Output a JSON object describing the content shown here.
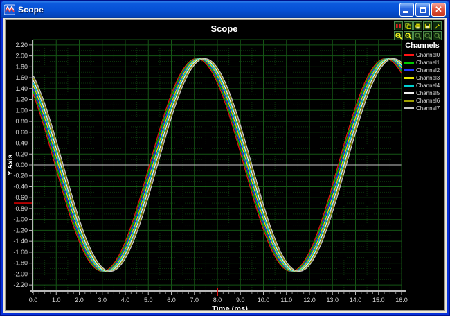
{
  "window": {
    "title": "Scope",
    "controls": {
      "minimize": "minimize",
      "maximize": "maximize",
      "close": "✕"
    }
  },
  "toolbar": {
    "buttons": [
      "pause",
      "copy",
      "print",
      "save",
      "settings",
      "zoom-in",
      "zoom-out",
      "zoom-x",
      "zoom-y",
      "zoom-box"
    ]
  },
  "legend": {
    "title": "Channels",
    "channels": [
      {
        "label": "Channel0",
        "color": "#ff1414"
      },
      {
        "label": "Channel1",
        "color": "#00c800"
      },
      {
        "label": "Channel2",
        "color": "#2238ff"
      },
      {
        "label": "Channel3",
        "color": "#e6e600"
      },
      {
        "label": "Channel4",
        "color": "#00d2d2"
      },
      {
        "label": "Channel5",
        "color": "#f0f0f0"
      },
      {
        "label": "Channel6",
        "color": "#a0a000"
      },
      {
        "label": "Channel7",
        "color": "#c8c8c8"
      }
    ]
  },
  "chart_data": {
    "type": "line",
    "title": "Scope",
    "xlabel": "Time (ms)",
    "ylabel": "Y Axis",
    "xlim": [
      0,
      16
    ],
    "ylim": [
      -2.3,
      2.3
    ],
    "x_ticks": [
      "0.0",
      "1.0",
      "2.0",
      "3.0",
      "4.0",
      "5.0",
      "6.0",
      "7.0",
      "8.0",
      "9.0",
      "10.0",
      "11.0",
      "12.0",
      "13.0",
      "14.0",
      "15.0",
      "16.0"
    ],
    "y_ticks": [
      "2.20",
      "2.00",
      "1.80",
      "1.60",
      "1.40",
      "1.20",
      "1.00",
      "0.80",
      "0.60",
      "0.40",
      "0.20",
      "0.00",
      "-0.20",
      "-0.40",
      "-0.60",
      "-0.80",
      "-1.00",
      "-1.20",
      "-1.40",
      "-1.60",
      "-1.80",
      "-2.00",
      "-2.20"
    ],
    "grid": {
      "x_major_step": 1.0,
      "y_major_step": 0.2,
      "major_color": "#155515",
      "minor_color": "#0b330b",
      "zero_line_color": "#c6c6c6",
      "legend_position": "right"
    },
    "series": [
      {
        "name": "Channel0",
        "color": "#e01414",
        "amplitude": 1.95,
        "period_ms": 8.2,
        "phase_ms": 5.05
      },
      {
        "name": "Channel1",
        "color": "#00c800",
        "amplitude": 1.95,
        "period_ms": 8.2,
        "phase_ms": 5.1
      },
      {
        "name": "Channel2",
        "color": "#2238ff",
        "amplitude": 1.95,
        "period_ms": 8.2,
        "phase_ms": 5.15
      },
      {
        "name": "Channel3",
        "color": "#e6e600",
        "amplitude": 1.95,
        "period_ms": 8.2,
        "phase_ms": 5.2
      },
      {
        "name": "Channel4",
        "color": "#00d2d2",
        "amplitude": 1.95,
        "period_ms": 8.2,
        "phase_ms": 5.25
      },
      {
        "name": "Channel5",
        "color": "#f0f0f0",
        "amplitude": 1.95,
        "period_ms": 8.2,
        "phase_ms": 5.3
      },
      {
        "name": "Channel6",
        "color": "#a0a000",
        "amplitude": 1.95,
        "period_ms": 8.2,
        "phase_ms": 5.35
      },
      {
        "name": "Channel7",
        "color": "#c8c8c8",
        "amplitude": 1.95,
        "period_ms": 8.2,
        "phase_ms": 5.4
      }
    ],
    "markers": {
      "y_axis_level": -0.7,
      "x_axis_time": 8.0,
      "color": "#b40000"
    }
  }
}
